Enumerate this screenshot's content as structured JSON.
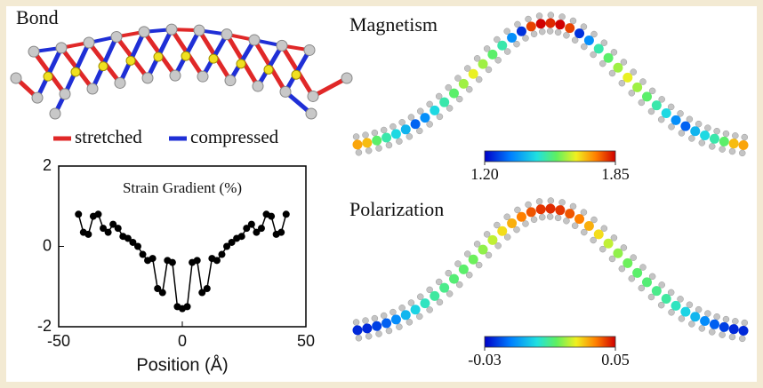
{
  "chart_data": [
    {
      "type": "structure",
      "title": "Bond",
      "legend": [
        {
          "label": "stretched",
          "color": "#e02828"
        },
        {
          "label": "compressed",
          "color": "#1f2fd6"
        }
      ]
    },
    {
      "type": "line",
      "title": "Strain Gradient (%)",
      "xlabel": "Position (Å)",
      "color": "#000000",
      "x": [
        -42,
        -40,
        -38,
        -36,
        -34,
        -32,
        -30,
        -28,
        -26,
        -24,
        -22,
        -20,
        -18,
        -16,
        -14,
        -12,
        -10,
        -8,
        -6,
        -4,
        -2,
        0,
        2,
        4,
        6,
        8,
        10,
        12,
        14,
        16,
        18,
        20,
        22,
        24,
        26,
        28,
        30,
        32,
        34,
        36,
        38,
        40,
        42
      ],
      "values": [
        0.8,
        0.35,
        0.3,
        0.75,
        0.8,
        0.45,
        0.35,
        0.55,
        0.45,
        0.25,
        0.2,
        0.1,
        0.0,
        -0.2,
        -0.35,
        -0.3,
        -1.05,
        -1.15,
        -0.35,
        -0.4,
        -1.5,
        -1.55,
        -1.5,
        -0.4,
        -0.35,
        -1.15,
        -1.05,
        -0.3,
        -0.35,
        -0.2,
        0.0,
        0.1,
        0.2,
        0.25,
        0.45,
        0.55,
        0.35,
        0.45,
        0.8,
        0.75,
        0.3,
        0.35,
        0.8
      ],
      "xlim": [
        -50,
        50
      ],
      "xticks": [
        -50,
        0,
        50
      ],
      "ylim": [
        -2,
        2
      ],
      "yticks": [
        -2,
        0,
        2
      ]
    },
    {
      "type": "chain",
      "title": "Magnetism",
      "values": [
        1.72,
        1.7,
        1.55,
        1.5,
        1.45,
        1.4,
        1.3,
        1.35,
        1.45,
        1.5,
        1.55,
        1.6,
        1.65,
        1.6,
        1.55,
        1.5,
        1.35,
        1.25,
        1.8,
        1.85,
        1.82,
        1.85,
        1.8,
        1.25,
        1.35,
        1.5,
        1.55,
        1.6,
        1.65,
        1.6,
        1.55,
        1.5,
        1.45,
        1.35,
        1.3,
        1.4,
        1.45,
        1.5,
        1.55,
        1.7,
        1.72
      ],
      "clim": [
        1.2,
        1.85
      ],
      "cticks": [
        {
          "value": 1.2,
          "label": "1.20"
        },
        1.85
      ]
    },
    {
      "type": "chain",
      "title": "Polarization",
      "values": [
        -0.025,
        -0.025,
        -0.022,
        -0.018,
        -0.012,
        -0.005,
        0.0,
        0.005,
        0.008,
        0.01,
        0.012,
        0.013,
        0.015,
        0.018,
        0.022,
        0.028,
        0.033,
        0.038,
        0.042,
        0.045,
        0.046,
        0.045,
        0.042,
        0.038,
        0.033,
        0.028,
        0.022,
        0.018,
        0.015,
        0.013,
        0.012,
        0.01,
        0.008,
        0.005,
        0.0,
        -0.005,
        -0.012,
        -0.018,
        -0.022,
        -0.025,
        -0.025
      ],
      "clim": [
        -0.03,
        0.05
      ],
      "cticks": [
        -0.03,
        0.05
      ]
    }
  ]
}
